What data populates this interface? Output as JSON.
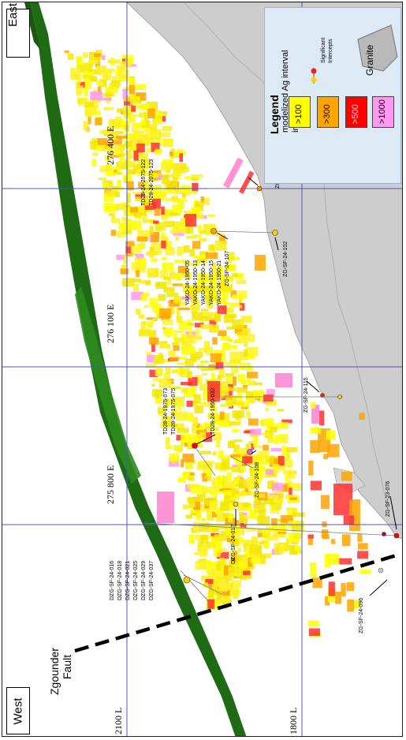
{
  "direction_labels": {
    "east": "East",
    "west": "West"
  },
  "fault_label": [
    "Zgounder",
    "Fault"
  ],
  "grid": {
    "eastings": [
      "276 400 E",
      "276 100 E",
      "275 800 E"
    ],
    "levels": [
      "2100 L",
      "1800 L"
    ]
  },
  "legend": {
    "title": "Legend",
    "subtitle": [
      "modelized Ag interval",
      "in g/t"
    ],
    "intercepts_label": [
      "Significant",
      "Intercepts"
    ],
    "granite_label": "Granite",
    "classes": [
      {
        "label": ">100",
        "color": "#ffff00",
        "text_color": "#000000"
      },
      {
        "label": ">300",
        "color": "#ffa500",
        "text_color": "#000000"
      },
      {
        "label": ">500",
        "color": "#ff0000",
        "text_color": "#ffffff"
      },
      {
        "label": ">1000",
        "color": "#ff99ee",
        "text_color": "#000000"
      }
    ]
  },
  "drillholes": [
    {
      "id": "ZG-SF-24-110"
    },
    {
      "id": "TD28-24-2075-122"
    },
    {
      "id": "TD28-24-2075-123"
    },
    {
      "id": "ZG-SF-24-102"
    },
    {
      "id": "ZG-SF-24-107"
    },
    {
      "id": "YAKO-24-1950-05"
    },
    {
      "id": "YAKO-24-1950-13"
    },
    {
      "id": "YAKO-24-1950-14"
    },
    {
      "id": "YAKO-24-1950-15"
    },
    {
      "id": "YAKO-24-1950-21"
    },
    {
      "id": "ZG-SF-24-115"
    },
    {
      "id": "TD28-24-1975-073"
    },
    {
      "id": "TD28-24-1975-075"
    },
    {
      "id": "TD28-24-1950-032"
    },
    {
      "id": "ZG-SF-24-108"
    },
    {
      "id": "ZG-SF-23-076"
    },
    {
      "id": "DZG-SF-24-017"
    },
    {
      "id": "DZG-SF-24-016"
    },
    {
      "id": "DZG-SF-24-018"
    },
    {
      "id": "DZG-SF-24-021"
    },
    {
      "id": "DZG-SF-24-025"
    },
    {
      "id": "DZG-SF-24-029"
    },
    {
      "id": "DZG-SF-24-037"
    },
    {
      "id": "ZG-SF-24-096"
    }
  ],
  "colors": {
    "granite": "#cdcdcd",
    "fault_band": "#1e6b14",
    "grid_line": "#4a55c8"
  }
}
